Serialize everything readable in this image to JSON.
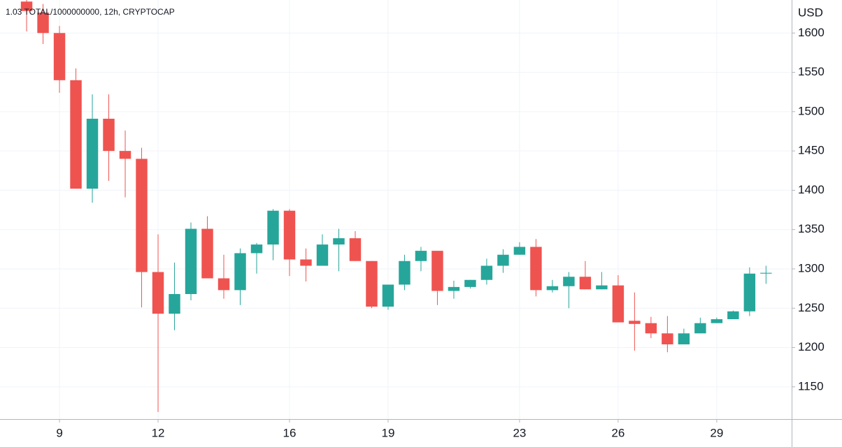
{
  "chart_data": {
    "type": "candlestick",
    "title": "1.03 TOTAL/1000000000, 12h, CRYPTOCAP",
    "y_axis_label": "USD",
    "x": [
      8,
      8.5,
      9,
      9.5,
      10,
      10.5,
      11,
      11.5,
      12,
      12.5,
      13,
      13.5,
      14,
      14.5,
      15,
      15.5,
      16,
      16.5,
      17,
      17.5,
      18,
      18.5,
      19,
      19.5,
      20,
      20.5,
      21,
      21.5,
      22,
      22.5,
      23,
      23.5,
      24,
      24.5,
      25,
      25.5,
      26,
      26.5,
      27,
      27.5,
      28,
      28.5,
      29,
      29.5,
      30,
      30.5
    ],
    "open": [
      1640,
      1626,
      1600,
      1540,
      1402,
      1491,
      1450,
      1440,
      1296,
      1243,
      1268,
      1351,
      1288,
      1273,
      1320,
      1331,
      1374,
      1312,
      1304,
      1331,
      1339,
      1310,
      1252,
      1280,
      1310,
      1323,
      1272,
      1277,
      1286,
      1304,
      1318,
      1328,
      1273,
      1278,
      1290,
      1274,
      1279,
      1234,
      1231,
      1218,
      1204,
      1218,
      1231,
      1236,
      1246,
      1294
    ],
    "high": [
      1645,
      1637,
      1609,
      1555,
      1522,
      1522,
      1476,
      1454,
      1344,
      1308,
      1359,
      1367,
      1318,
      1326,
      1333,
      1376,
      1376,
      1326,
      1344,
      1351,
      1348,
      1310,
      1280,
      1318,
      1328,
      1323,
      1285,
      1286,
      1313,
      1325,
      1334,
      1338,
      1286,
      1296,
      1310,
      1296,
      1292,
      1270,
      1239,
      1240,
      1224,
      1238,
      1238,
      1247,
      1302,
      1304
    ],
    "low": [
      1602,
      1586,
      1524,
      1402,
      1384,
      1412,
      1391,
      1251,
      1118,
      1222,
      1260,
      1288,
      1262,
      1254,
      1294,
      1311,
      1291,
      1284,
      1304,
      1297,
      1310,
      1250,
      1248,
      1273,
      1297,
      1254,
      1262,
      1275,
      1280,
      1295,
      1318,
      1265,
      1270,
      1250,
      1274,
      1274,
      1232,
      1196,
      1212,
      1194,
      1204,
      1218,
      1231,
      1236,
      1240,
      1281
    ],
    "close": [
      1628,
      1600,
      1540,
      1402,
      1491,
      1450,
      1440,
      1296,
      1243,
      1268,
      1351,
      1288,
      1273,
      1320,
      1331,
      1374,
      1312,
      1304,
      1331,
      1339,
      1310,
      1252,
      1280,
      1310,
      1323,
      1272,
      1277,
      1286,
      1304,
      1318,
      1328,
      1273,
      1278,
      1290,
      1274,
      1279,
      1232,
      1230,
      1218,
      1204,
      1218,
      1231,
      1236,
      1246,
      1294,
      1295
    ],
    "up_color": "#26a69a",
    "down_color": "#ef5350",
    "xlim": [
      7.19,
      31.28
    ],
    "xticks": [
      9,
      12,
      16,
      19,
      23,
      26,
      29
    ],
    "ylim": [
      1109,
      1642
    ],
    "yticks": [
      1150,
      1200,
      1250,
      1300,
      1350,
      1400,
      1450,
      1500,
      1550,
      1600
    ],
    "grid": true
  }
}
